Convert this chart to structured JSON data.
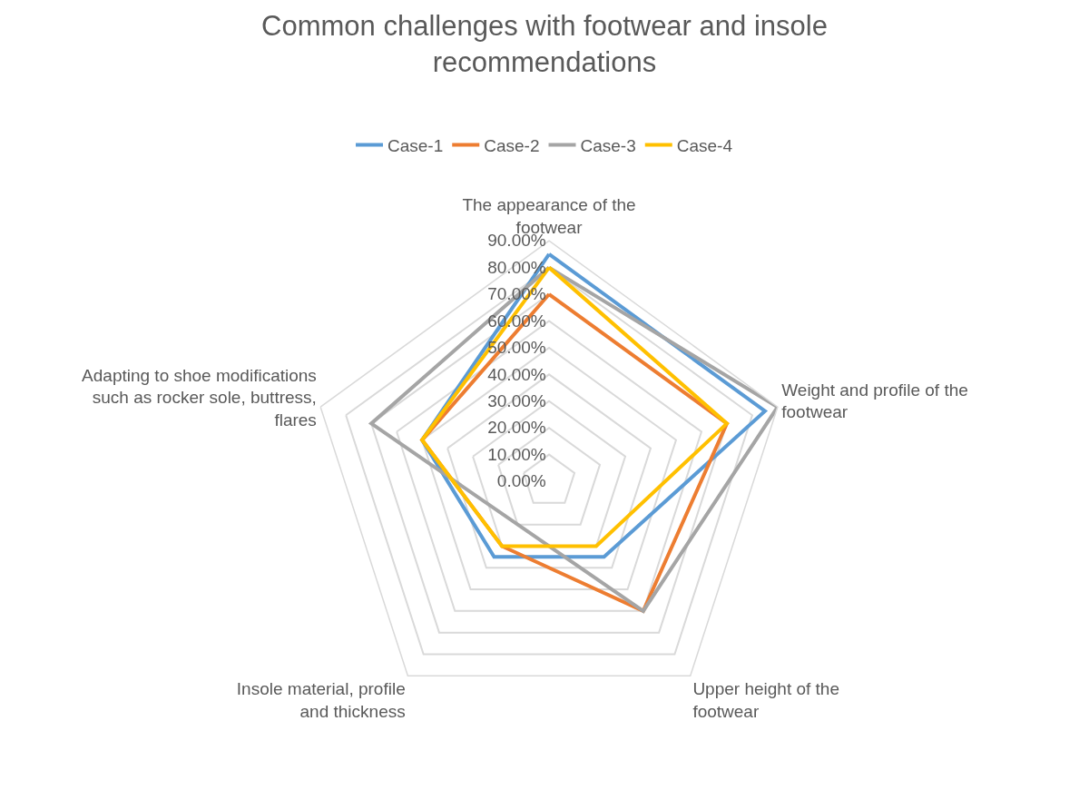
{
  "chart_data": {
    "type": "radar",
    "title": "Common challenges with footwear and insole recommendations",
    "categories": [
      "The appearance of the footwear",
      "Weight and profile of the footwear",
      "Upper height of the footwear",
      "Insole material, profile and thickness",
      "Adapting to shoe modifications such as rocker sole, buttress, flares"
    ],
    "series": [
      {
        "name": "Case-1",
        "color": "#5b9bd5",
        "values": [
          85,
          85,
          35,
          35,
          50
        ]
      },
      {
        "name": "Case-2",
        "color": "#ed7d31",
        "values": [
          70,
          70,
          60,
          30,
          50
        ]
      },
      {
        "name": "Case-3",
        "color": "#a5a5a5",
        "values": [
          80,
          90,
          60,
          20,
          70
        ]
      },
      {
        "name": "Case-4",
        "color": "#ffc000",
        "values": [
          80,
          70,
          30,
          30,
          50
        ]
      }
    ],
    "ylim": [
      0,
      90
    ],
    "yticks": [
      {
        "value": 0,
        "label": "0.00%"
      },
      {
        "value": 10,
        "label": "10.00%"
      },
      {
        "value": 20,
        "label": "20.00%"
      },
      {
        "value": 30,
        "label": "30.00%"
      },
      {
        "value": 40,
        "label": "40.00%"
      },
      {
        "value": 50,
        "label": "50.00%"
      },
      {
        "value": 60,
        "label": "60.00%"
      },
      {
        "value": 70,
        "label": "70.00%"
      },
      {
        "value": 80,
        "label": "80.00%"
      },
      {
        "value": 90,
        "label": "90.00%"
      }
    ],
    "grid": true,
    "legend": "top",
    "marker": "none",
    "line_style": "solid"
  }
}
